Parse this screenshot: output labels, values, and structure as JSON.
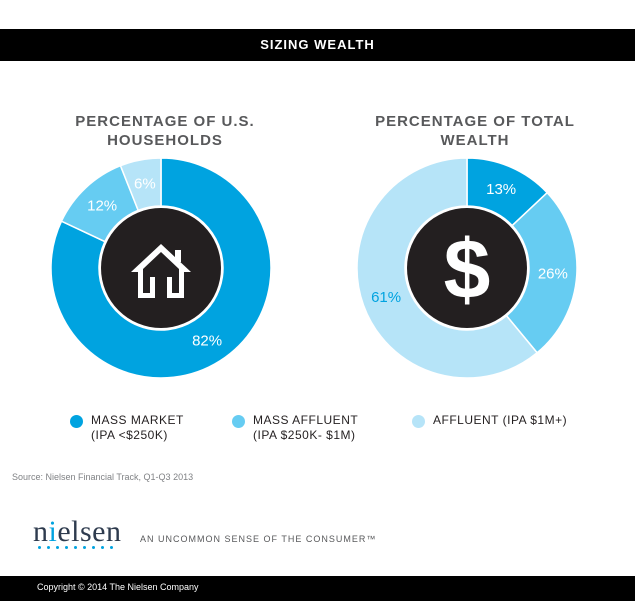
{
  "header": {
    "title": "SIZING WEALTH"
  },
  "colors": {
    "mass_market": "#00a3e0",
    "mass_affluent": "#66ccf2",
    "affluent": "#b6e4f8",
    "center": "#231f20"
  },
  "chart_data": [
    {
      "type": "pie",
      "title": "PERCENTAGE OF U.S. HOUSEHOLDS",
      "center_icon": "house-icon",
      "slices": [
        {
          "label": "MASS MARKET",
          "value": 82,
          "display": "82%"
        },
        {
          "label": "MASS AFFLUENT",
          "value": 12,
          "display": "12%"
        },
        {
          "label": "AFFLUENT",
          "value": 6,
          "display": "6%"
        }
      ]
    },
    {
      "type": "pie",
      "title": "PERCENTAGE OF TOTAL WEALTH",
      "center_icon": "dollar-icon",
      "slices": [
        {
          "label": "AFFLUENT",
          "value": 13,
          "display": "13%"
        },
        {
          "label": "MASS AFFLUENT",
          "value": 26,
          "display": "26%"
        },
        {
          "label": "AFFLUENT",
          "value": 61,
          "display": "61%"
        }
      ]
    }
  ],
  "legend": [
    {
      "text": "MASS MARKET\n(IPA <$250K)"
    },
    {
      "text": "MASS AFFLUENT\n(IPA $250K- $1M)"
    },
    {
      "text": "AFFLUENT (IPA $1M+)"
    }
  ],
  "center_glyph_right": "$",
  "source": "Source: Nielsen Financial Track, Q1-Q3 2013",
  "brand": {
    "logo_first": "n",
    "logo_i": "i",
    "logo_rest": "elsen",
    "tagline": "AN UNCOMMON SENSE OF THE CONSUMER™"
  },
  "footer": {
    "copyright": "Copyright © 2014 The Nielsen Company"
  }
}
